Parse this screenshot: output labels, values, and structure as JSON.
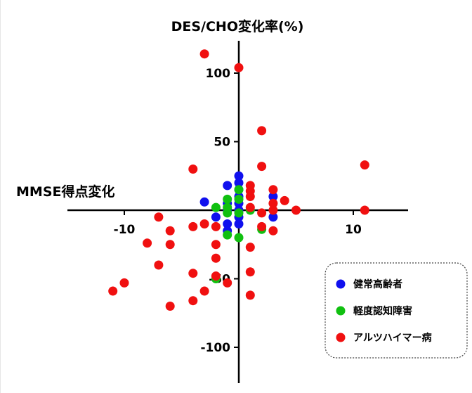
{
  "chart_data": {
    "type": "scatter",
    "y_title": "DES/CHO変化率(%)",
    "x_title": "MMSE得点変化",
    "xlim": [
      -15,
      15
    ],
    "ylim": [
      -120,
      120
    ],
    "x_ticks": [
      -10,
      10
    ],
    "x_tick_labels": [
      "-10",
      "10"
    ],
    "y_ticks": [
      100,
      50,
      -50,
      -100
    ],
    "y_tick_labels": [
      "100",
      "50",
      "-50",
      "-100"
    ],
    "legend_position": "bottom-right",
    "grid": false,
    "series": [
      {
        "name": "健常高齢者",
        "color": "#1010ee",
        "points": [
          [
            0,
            25
          ],
          [
            0,
            20
          ],
          [
            -1,
            18
          ],
          [
            0,
            15
          ],
          [
            0,
            10
          ],
          [
            -3,
            6
          ],
          [
            -1,
            5
          ],
          [
            0,
            5
          ],
          [
            -1,
            0
          ],
          [
            0,
            0
          ],
          [
            -2,
            -5
          ],
          [
            0,
            -5
          ],
          [
            -1,
            -10
          ],
          [
            0,
            -10
          ],
          [
            -1,
            -15
          ],
          [
            3,
            10
          ],
          [
            3,
            -5
          ]
        ]
      },
      {
        "name": "軽度認知障害",
        "color": "#10c010",
        "points": [
          [
            0,
            15
          ],
          [
            -1,
            8
          ],
          [
            0,
            8
          ],
          [
            -2,
            2
          ],
          [
            -1,
            2
          ],
          [
            1,
            0
          ],
          [
            -1,
            -2
          ],
          [
            0,
            -2
          ],
          [
            -1,
            -18
          ],
          [
            0,
            -20
          ],
          [
            2,
            -14
          ],
          [
            -2,
            -50
          ]
        ]
      },
      {
        "name": "アルツハイマー病",
        "color": "#f01010",
        "points": [
          [
            -3,
            114
          ],
          [
            0,
            104
          ],
          [
            2,
            58
          ],
          [
            2,
            32
          ],
          [
            -4,
            30
          ],
          [
            11,
            33
          ],
          [
            1,
            18
          ],
          [
            3,
            15
          ],
          [
            1,
            14
          ],
          [
            1,
            10
          ],
          [
            3,
            5
          ],
          [
            4,
            7
          ],
          [
            3,
            0
          ],
          [
            5,
            0
          ],
          [
            11,
            0
          ],
          [
            1,
            2
          ],
          [
            -7,
            -5
          ],
          [
            -6,
            -15
          ],
          [
            -4,
            -12
          ],
          [
            -3,
            -10
          ],
          [
            -2,
            -25
          ],
          [
            -8,
            -24
          ],
          [
            -6,
            -25
          ],
          [
            -2,
            -35
          ],
          [
            -7,
            -40
          ],
          [
            -4,
            -46
          ],
          [
            -2,
            -48
          ],
          [
            -10,
            -53
          ],
          [
            -11,
            -59
          ],
          [
            -4,
            -66
          ],
          [
            -3,
            -59
          ],
          [
            -6,
            -70
          ],
          [
            -1,
            -53
          ],
          [
            1,
            -45
          ],
          [
            1,
            -62
          ],
          [
            1,
            -27
          ],
          [
            2,
            -12
          ],
          [
            3,
            -15
          ],
          [
            2,
            -2
          ],
          [
            -2,
            -12
          ]
        ]
      }
    ]
  }
}
